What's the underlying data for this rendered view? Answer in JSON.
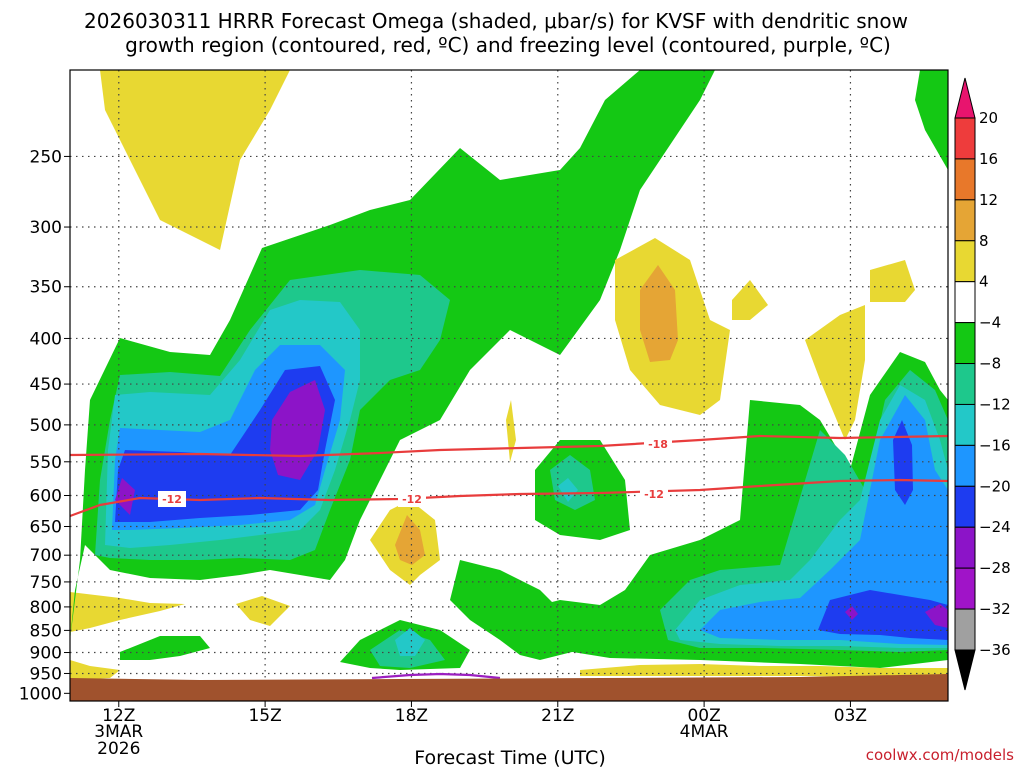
{
  "chart_data": {
    "type": "time-height cross section (filled contours)",
    "title_line1": "2026030311 HRRR Forecast Omega (shaded, μbar/s) for KVSF with dendritic snow",
    "title_line2": "growth region (contoured, red, ºC) and freezing level (contoured, purple, ºC)",
    "xlabel": "Forecast Time (UTC)",
    "credit": "coolwx.com/models",
    "x_ticks": [
      {
        "hour": 0,
        "label": "12Z",
        "sub1": "3MAR",
        "sub2": "2026"
      },
      {
        "hour": 3,
        "label": "15Z",
        "sub1": "",
        "sub2": ""
      },
      {
        "hour": 6,
        "label": "18Z",
        "sub1": "",
        "sub2": ""
      },
      {
        "hour": 9,
        "label": "21Z",
        "sub1": "",
        "sub2": ""
      },
      {
        "hour": 12,
        "label": "00Z",
        "sub1": "4MAR",
        "sub2": ""
      },
      {
        "hour": 15,
        "label": "03Z",
        "sub1": "",
        "sub2": ""
      }
    ],
    "x_range_hours": [
      -1,
      17
    ],
    "y_ticks_hpa": [
      250,
      300,
      350,
      400,
      450,
      500,
      550,
      600,
      650,
      700,
      750,
      800,
      850,
      900,
      950,
      1000
    ],
    "y_range_hpa": [
      200,
      1020
    ],
    "colorbar": {
      "levels": [
        "20",
        "16",
        "12",
        "8",
        "4",
        "−4",
        "−8",
        "−12",
        "−16",
        "−20",
        "−24",
        "−28",
        "−32",
        "−36"
      ],
      "colors": [
        "#e8146e",
        "#ee3c3c",
        "#e8782a",
        "#e5a535",
        "#e8d832",
        "#ffffff",
        "#14c814",
        "#1ec88c",
        "#23c8c8",
        "#1e96ff",
        "#1e3cf0",
        "#8c14c8",
        "#a014c8",
        "#a0a0a0",
        "#000000"
      ]
    },
    "contours": [
      {
        "label": "-18",
        "color": "#e83c3c",
        "description": "dendritic growth region top (-18 ºC)"
      },
      {
        "label": "-12",
        "color": "#e83c3c",
        "description": "dendritic growth region bottom (-12 ºC)"
      },
      {
        "label": "",
        "color": "#9b1fc0",
        "description": "freezing level"
      }
    ],
    "terrain_color": "#a0522d"
  }
}
